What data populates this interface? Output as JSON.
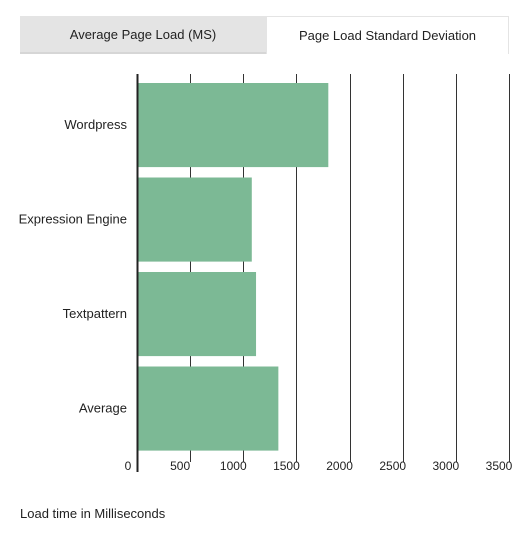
{
  "tabs": [
    {
      "label": "Average Page Load (MS)",
      "active": false
    },
    {
      "label": "Page Load Standard Deviation",
      "active": true
    }
  ],
  "chart_data": {
    "type": "bar",
    "orientation": "horizontal",
    "categories": [
      "Wordpress",
      "Expression Engine",
      "Textpattern",
      "Average"
    ],
    "values": [
      1800,
      1080,
      1120,
      1330
    ],
    "xlim": [
      0,
      3500
    ],
    "xticks": [
      "0",
      "500",
      "1000",
      "1500",
      "2000",
      "2500",
      "3000",
      "3500"
    ],
    "bar_color": "#7cb995",
    "grid": true,
    "xlabel": "Load time in Milliseconds"
  }
}
